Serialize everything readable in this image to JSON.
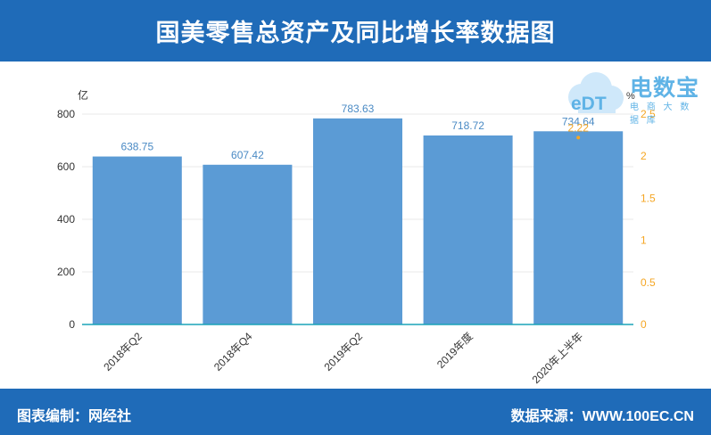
{
  "header": {
    "title": "国美零售总资产及同比增长率数据图"
  },
  "footer": {
    "left": "图表编制：网经社",
    "right": "数据来源：WWW.100EC.CN"
  },
  "logo": {
    "cn": "电数宝",
    "latin": "eDT",
    "sub": "电 商 大 数 据 库"
  },
  "chart_data": {
    "type": "bar",
    "categories": [
      "2018年Q2",
      "2018年Q4",
      "2019年Q2",
      "2019年度",
      "2020年上半年"
    ],
    "series": [
      {
        "values": [
          638.75,
          607.42,
          783.63,
          718.72,
          734.64
        ]
      },
      {
        "type": "scatter",
        "values": [
          null,
          null,
          null,
          null,
          2.22
        ]
      }
    ],
    "y_unit_label": "亿",
    "y2_unit_label": "%",
    "ylim": [
      0,
      800
    ],
    "yticks": [
      0,
      200,
      400,
      600,
      800
    ],
    "y2lim": [
      0,
      2.5
    ],
    "y2ticks": [
      0,
      0.5,
      1,
      1.5,
      2,
      2.5
    ],
    "y2tick_labels": [
      "0",
      "0.5",
      "1",
      "1.5",
      "2",
      "2.5"
    ],
    "data_labels": [
      "638.75",
      "607.42",
      "783.63",
      "718.72",
      "734.64"
    ],
    "point_labels": [
      "2.22"
    ],
    "bar_color": "#5b9bd5",
    "point_color": "#f5a623",
    "y2_axis_color": "#f5a623",
    "grid": true
  }
}
